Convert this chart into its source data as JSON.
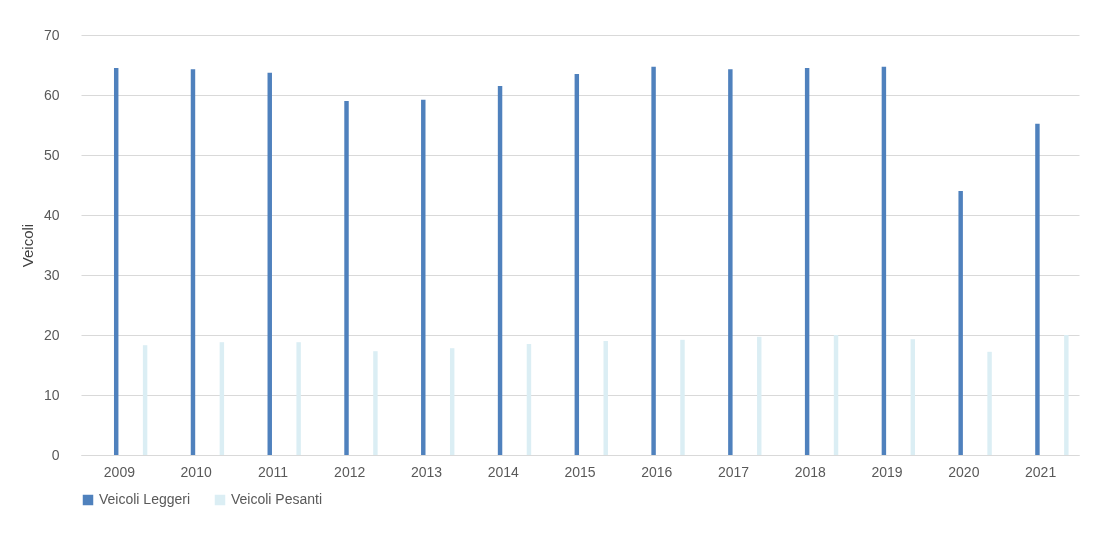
{
  "chart_data": {
    "type": "bar",
    "ylabel": "Veicoli",
    "categories": [
      "2009",
      "2010",
      "2011",
      "2012",
      "2013",
      "2014",
      "2015",
      "2016",
      "2017",
      "2018",
      "2019",
      "2020",
      "2021"
    ],
    "series": [
      {
        "name": "Veicoli Leggeri",
        "color": "#4f81bd",
        "values": [
          64.5,
          64.3,
          63.7,
          59,
          59.2,
          61.5,
          63.5,
          64.7,
          64.3,
          64.5,
          64.7,
          44,
          55.2
        ]
      },
      {
        "name": "Veicoli Pesanti",
        "color": "#dbeef4",
        "values": [
          18.3,
          18.8,
          18.8,
          17.3,
          17.8,
          18.5,
          19,
          19.2,
          19.7,
          20,
          19.3,
          17.2,
          20
        ]
      }
    ],
    "ylim": [
      0,
      70
    ],
    "yticks": [
      0,
      10,
      20,
      30,
      40,
      50,
      60,
      70
    ],
    "grid": "y",
    "legend": "bottom"
  }
}
